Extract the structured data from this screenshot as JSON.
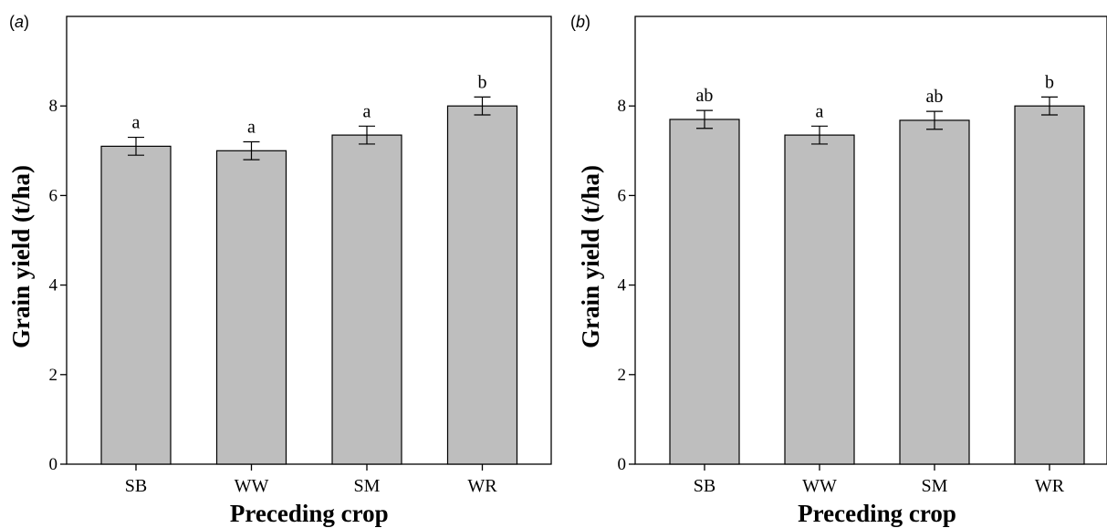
{
  "figure": {
    "panels": [
      {
        "tag": "(",
        "letter": "a",
        "tag_close": ")"
      },
      {
        "tag": "(",
        "letter": "b",
        "tag_close": ")"
      }
    ]
  },
  "chart_data": [
    {
      "type": "bar",
      "panel": "(a)",
      "categories": [
        "SB",
        "WW",
        "SM",
        "WR"
      ],
      "values": [
        7.1,
        7.0,
        7.35,
        8.0
      ],
      "error": [
        0.2,
        0.2,
        0.2,
        0.2
      ],
      "significance": [
        "a",
        "a",
        "a",
        "b"
      ],
      "xlabel": "Preceding crop",
      "ylabel": "Grain yield (t/ha)",
      "ylim": [
        0,
        10
      ],
      "yticks": [
        0,
        2,
        4,
        6,
        8
      ],
      "bar_color": "#bebebe",
      "grid": false
    },
    {
      "type": "bar",
      "panel": "(b)",
      "categories": [
        "SB",
        "WW",
        "SM",
        "WR"
      ],
      "values": [
        7.7,
        7.35,
        7.68,
        8.0
      ],
      "error": [
        0.2,
        0.2,
        0.2,
        0.2
      ],
      "significance": [
        "ab",
        "a",
        "ab",
        "b"
      ],
      "xlabel": "Preceding crop",
      "ylabel": "Grain yield (t/ha)",
      "ylim": [
        0,
        10
      ],
      "yticks": [
        0,
        2,
        4,
        6,
        8
      ],
      "bar_color": "#bebebe",
      "grid": false
    }
  ]
}
